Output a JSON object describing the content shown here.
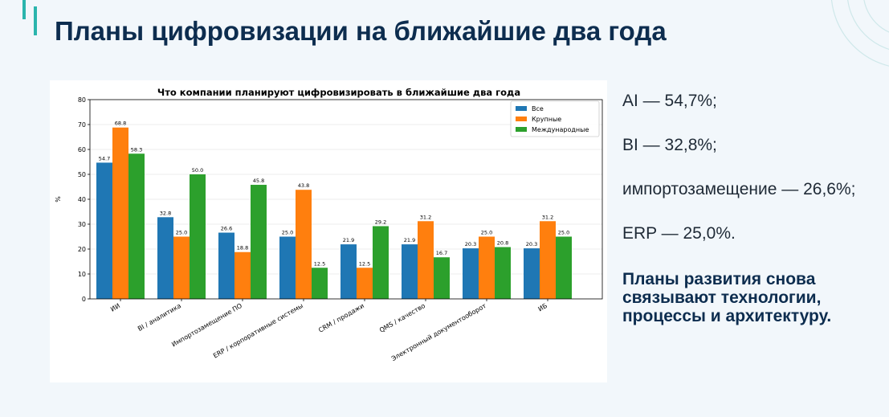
{
  "slide": {
    "title": "Планы цифровизации на ближайшие два года",
    "stats": [
      "AI — 54,7%;",
      "BI — 32,8%;",
      "импортозамещение — 26,6%;",
      "ERP — 25,0%."
    ],
    "conclusion": "Планы развития снова связывают технологии, процессы и архитектуру."
  },
  "colors": {
    "title": "#0d2d4f",
    "accent": "#2bb5ad",
    "background": "#f2f7fb"
  },
  "chart_data": {
    "type": "bar",
    "title": "Что компании планируют цифровизировать в ближайшие два года",
    "xlabel": "",
    "ylabel": "%",
    "ylim": [
      0,
      80
    ],
    "yticks": [
      0,
      10,
      20,
      30,
      40,
      50,
      60,
      70,
      80
    ],
    "grid": "horizontal",
    "legend_position": "top-right",
    "categories": [
      "ИИ",
      "BI / аналитика",
      "Импортозамещение ПО",
      "ERP / корпоративные системы",
      "CRM / продажи",
      "QMS / качество",
      "Электронный документооборот",
      "ИБ"
    ],
    "series": [
      {
        "name": "Все",
        "color": "#1f77b4",
        "values": [
          54.7,
          32.8,
          26.6,
          25.0,
          21.9,
          21.9,
          20.3,
          20.3
        ]
      },
      {
        "name": "Крупные",
        "color": "#ff7f0e",
        "values": [
          68.8,
          25.0,
          18.8,
          43.8,
          12.5,
          31.2,
          25.0,
          31.2
        ]
      },
      {
        "name": "Международные",
        "color": "#2ca02c",
        "values": [
          58.3,
          50.0,
          45.8,
          12.5,
          29.2,
          16.7,
          20.8,
          25.0
        ]
      }
    ]
  }
}
